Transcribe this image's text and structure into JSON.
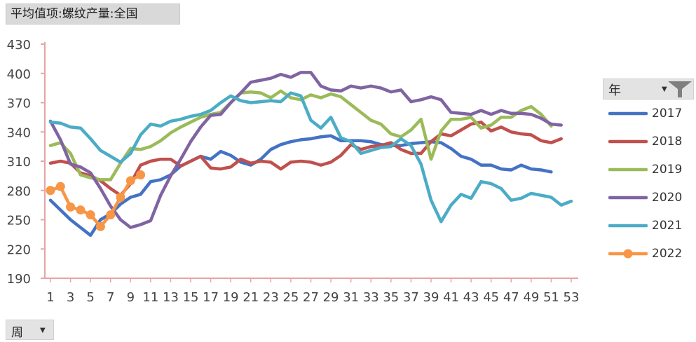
{
  "header": {
    "field_button_label": "平均值项:螺纹产量:全国"
  },
  "legend": {
    "field_label": "年",
    "dropdown_glyph": "▼",
    "filter_icon": "funnel-filter-icon"
  },
  "axis_field": {
    "label": "周",
    "dropdown_glyph": "▼"
  },
  "colors": {
    "axis": "#e6a4a4",
    "tick_text": "#444444"
  },
  "chart_data": {
    "type": "line",
    "xlabel": "",
    "ylabel": "",
    "ylim": [
      190,
      430
    ],
    "yticks": [
      190,
      220,
      250,
      280,
      310,
      340,
      370,
      400,
      430
    ],
    "xlim": [
      1,
      53
    ],
    "xticks": [
      1,
      3,
      5,
      7,
      9,
      11,
      13,
      15,
      17,
      19,
      21,
      23,
      25,
      27,
      29,
      31,
      33,
      35,
      37,
      39,
      41,
      43,
      45,
      47,
      49,
      51,
      53
    ],
    "grid": false,
    "legend_position": "right",
    "series": [
      {
        "name": "2017",
        "color": "#4472c4",
        "marker": false,
        "values": [
          270,
          260,
          250,
          242,
          234,
          250,
          256,
          266,
          273,
          276,
          289,
          291,
          296,
          305,
          310,
          315,
          312,
          320,
          316,
          309,
          306,
          312,
          322,
          327,
          330,
          332,
          333,
          335,
          336,
          331,
          331,
          331,
          330,
          327,
          326,
          326,
          328,
          329,
          330,
          329,
          323,
          315,
          312,
          306,
          306,
          302,
          301,
          306,
          302,
          301,
          299
        ]
      },
      {
        "name": "2018",
        "color": "#c0504d",
        "marker": false,
        "values": [
          308,
          310,
          308,
          298,
          295,
          290,
          282,
          275,
          287,
          306,
          310,
          312,
          312,
          305,
          310,
          315,
          303,
          302,
          304,
          312,
          308,
          310,
          309,
          302,
          309,
          310,
          309,
          306,
          309,
          316,
          327,
          322,
          325,
          326,
          329,
          322,
          318,
          318,
          330,
          338,
          336,
          342,
          348,
          350,
          341,
          345,
          340,
          338,
          337,
          331,
          329,
          333
        ]
      },
      {
        "name": "2019",
        "color": "#9bbb59",
        "marker": false,
        "values": [
          326,
          329,
          318,
          296,
          293,
          291,
          291,
          308,
          323,
          322,
          325,
          331,
          339,
          345,
          350,
          355,
          358,
          360,
          370,
          380,
          381,
          380,
          375,
          382,
          375,
          373,
          378,
          375,
          379,
          376,
          368,
          360,
          352,
          348,
          338,
          335,
          342,
          353,
          312,
          341,
          353,
          353,
          355,
          344,
          347,
          355,
          355,
          362,
          366,
          358,
          346
        ]
      },
      {
        "name": "2020",
        "color": "#8064a2",
        "marker": false,
        "values": [
          351,
          332,
          307,
          304,
          298,
          282,
          264,
          250,
          242,
          245,
          249,
          275,
          295,
          312,
          330,
          345,
          357,
          358,
          370,
          380,
          391,
          393,
          395,
          399,
          396,
          401,
          401,
          387,
          383,
          382,
          387,
          385,
          387,
          385,
          381,
          383,
          371,
          373,
          376,
          373,
          360,
          359,
          358,
          362,
          358,
          362,
          359,
          359,
          358,
          354,
          348,
          347
        ]
      },
      {
        "name": "2021",
        "color": "#4bacc6",
        "marker": false,
        "values": [
          350,
          349,
          345,
          344,
          333,
          321,
          315,
          309,
          318,
          337,
          348,
          346,
          351,
          353,
          356,
          358,
          362,
          370,
          377,
          372,
          370,
          371,
          372,
          371,
          380,
          377,
          352,
          344,
          355,
          334,
          330,
          318,
          321,
          324,
          325,
          333,
          326,
          307,
          270,
          248,
          265,
          276,
          272,
          289,
          287,
          282,
          270,
          272,
          277,
          275,
          273,
          265,
          269
        ]
      },
      {
        "name": "2022",
        "color": "#f79646",
        "marker": true,
        "values": [
          280,
          284,
          263,
          260,
          255,
          243,
          255,
          273,
          290,
          296
        ]
      }
    ]
  }
}
